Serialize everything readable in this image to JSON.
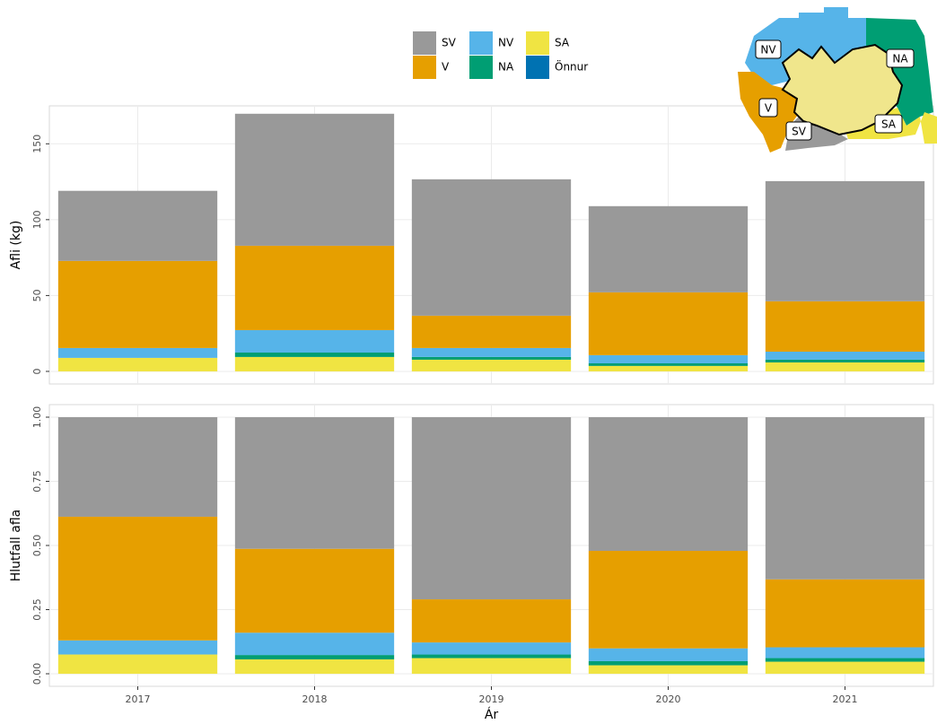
{
  "chart_data": [
    {
      "type": "stacked_bar",
      "ylabel": "Afli (kg)",
      "categories": [
        "2017",
        "2018",
        "2019",
        "2020",
        "2021"
      ],
      "series": [
        {
          "name": "SA",
          "color": "#F0E442",
          "values": [
            8.9,
            9.5,
            7.7,
            3.6,
            5.9
          ]
        },
        {
          "name": "NA",
          "color": "#009E73",
          "values": [
            0,
            2.9,
            1.8,
            1.7,
            1.8
          ]
        },
        {
          "name": "NV",
          "color": "#56B4E9",
          "values": [
            6.5,
            14.8,
            5.9,
            5.4,
            5.3
          ]
        },
        {
          "name": "V",
          "color": "#E69F00",
          "values": [
            57.4,
            55.6,
            21.3,
            41.4,
            33.2
          ]
        },
        {
          "name": "SV",
          "color": "#999999",
          "values": [
            46.2,
            87,
            89.9,
            56.8,
            79.2
          ]
        },
        {
          "name": "Önnur",
          "color": "#0072B2",
          "values": [
            0,
            0,
            0,
            0,
            0
          ]
        }
      ],
      "ylim": [
        -8.3,
        175
      ],
      "yticks": [
        0,
        50,
        100,
        150
      ],
      "grid": true
    },
    {
      "type": "stacked_bar",
      "ylabel": "Hlutfall afla",
      "xlabel": "Ár",
      "categories": [
        "2017",
        "2018",
        "2019",
        "2020",
        "2021"
      ],
      "series": [
        {
          "name": "SA",
          "color": "#F0E442",
          "values": [
            0.075,
            0.056,
            0.061,
            0.033,
            0.047
          ]
        },
        {
          "name": "NA",
          "color": "#009E73",
          "values": [
            0,
            0.017,
            0.014,
            0.016,
            0.014
          ]
        },
        {
          "name": "NV",
          "color": "#56B4E9",
          "values": [
            0.055,
            0.087,
            0.047,
            0.05,
            0.042
          ]
        },
        {
          "name": "V",
          "color": "#E69F00",
          "values": [
            0.482,
            0.327,
            0.168,
            0.38,
            0.265
          ]
        },
        {
          "name": "SV",
          "color": "#999999",
          "values": [
            0.388,
            0.513,
            0.71,
            0.521,
            0.632
          ]
        },
        {
          "name": "Önnur",
          "color": "#0072B2",
          "values": [
            0,
            0,
            0,
            0,
            0
          ]
        }
      ],
      "ylim": [
        -0.049,
        1.049
      ],
      "yticks": [
        {
          "value": 0,
          "label": "0.00"
        },
        {
          "value": 0.25,
          "label": "0.25"
        },
        {
          "value": 0.5,
          "label": "0.50"
        },
        {
          "value": 0.75,
          "label": "0.75"
        },
        {
          "value": 1,
          "label": "1.00"
        }
      ],
      "grid": true
    }
  ],
  "inset_map": {
    "labels": [
      "NV",
      "NA",
      "V",
      "SV",
      "SA"
    ]
  }
}
